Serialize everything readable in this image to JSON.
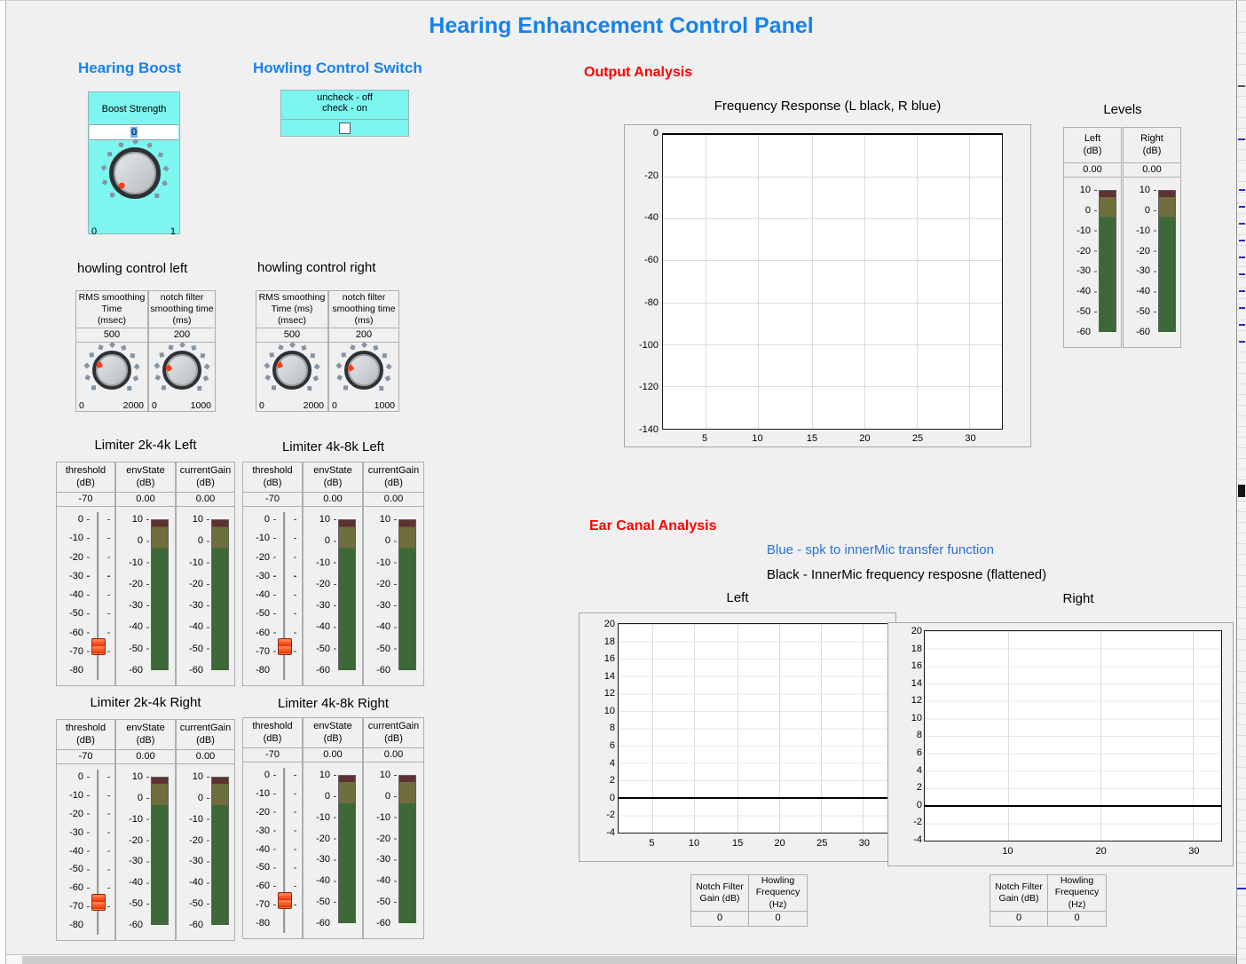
{
  "colors": {
    "title_blue": "#1482f0",
    "section_red": "#ff0000",
    "legend_blue": "#2b70d9",
    "cyan_panel": "#7df6f0",
    "window_bg": "#f0f0f0",
    "meter_maroon": "#5e3134",
    "meter_olive": "#6f6e3d",
    "meter_green": "#3d6837",
    "indicator_orange": "#ff3a12",
    "knob_tick": "#8494a3",
    "grid": "#dcdcdc",
    "grid_light": "#e7e7e7"
  },
  "title": "Hearing Enhancement Control Panel",
  "hearing_boost": {
    "section_label": "Hearing Boost",
    "control_label": "Boost Strength",
    "value": "0",
    "scale_min": "0",
    "scale_max": "1",
    "knob": {
      "value": 0,
      "min": 0,
      "max": 1
    }
  },
  "howling_switch": {
    "section_label": "Howling Control Switch",
    "caption": "uncheck - off\ncheck - on",
    "checked": false
  },
  "howling_left": {
    "section_label": "howling control left",
    "knobs": [
      {
        "header": "RMS smoothing\nTime\n(msec)",
        "value": "500",
        "scale_min": "0",
        "scale_max": "2000",
        "knob": {
          "value": 500,
          "min": 0,
          "max": 2000
        }
      },
      {
        "header": "notch filter\nsmoothing time\n(ms)",
        "value": "200",
        "scale_min": "0",
        "scale_max": "1000",
        "knob": {
          "value": 200,
          "min": 0,
          "max": 1000
        }
      }
    ]
  },
  "howling_right": {
    "section_label": "howling control right",
    "knobs": [
      {
        "header": "RMS smoothing\nTime (ms)\n(msec)",
        "value": "500",
        "scale_min": "0",
        "scale_max": "2000",
        "knob": {
          "value": 500,
          "min": 0,
          "max": 2000
        }
      },
      {
        "header": "notch filter\nsmoothing time\n(ms)",
        "value": "200",
        "scale_min": "0",
        "scale_max": "1000",
        "knob": {
          "value": 200,
          "min": 0,
          "max": 1000
        }
      }
    ]
  },
  "limiter_common": {
    "threshold_header": "threshold\n(dB)",
    "threshold_value": "-70",
    "threshold_ticks": [
      "0",
      "-10",
      "-20",
      "-30",
      "-40",
      "-50",
      "-60",
      "-70",
      "-80"
    ],
    "envstate_header": "envState\n(dB)",
    "envstate_value": "0.00",
    "currentgain_header": "currentGain\n(dB)",
    "currentgain_value": "0.00"
  },
  "meter_ticks": [
    "10",
    "0",
    "-10",
    "-20",
    "-30",
    "-40",
    "-50",
    "-60"
  ],
  "limiters": [
    {
      "title": "Limiter 2k-4k Left"
    },
    {
      "title": "Limiter 4k-8k Left"
    },
    {
      "title": "Limiter 2k-4k Right"
    },
    {
      "title": "Limiter 4k-8k Right"
    }
  ],
  "output_analysis": {
    "section_label": "Output Analysis",
    "chart_title": "Frequency Response (L black, R blue)",
    "y_ticks": [
      "0",
      "-20",
      "-40",
      "-60",
      "-80",
      "-100",
      "-120",
      "-140"
    ],
    "x_ticks": [
      "5",
      "10",
      "15",
      "20",
      "25",
      "30"
    ]
  },
  "levels": {
    "section_label": "Levels",
    "meters": [
      {
        "header": "Left\n(dB)",
        "value": "0.00"
      },
      {
        "header": "Right\n(dB)",
        "value": "0.00"
      }
    ]
  },
  "ear_canal": {
    "section_label": "Ear Canal Analysis",
    "legend_blue": "Blue - spk to innerMic transfer function",
    "legend_black": "Black - InnerMic frequency resposne (flattened)",
    "left": {
      "title": "Left",
      "y_ticks": [
        "20",
        "18",
        "16",
        "14",
        "12",
        "10",
        "8",
        "6",
        "4",
        "2",
        "0",
        "-2",
        "-4"
      ],
      "x_ticks": [
        "5",
        "10",
        "15",
        "20",
        "25",
        "30"
      ]
    },
    "right": {
      "title": "Right",
      "y_ticks": [
        "20",
        "18",
        "16",
        "14",
        "12",
        "10",
        "8",
        "6",
        "4",
        "2",
        "0",
        "-2",
        "-4"
      ],
      "x_ticks": [
        "10",
        "20",
        "30"
      ]
    },
    "tables": [
      {
        "col1_header": "Notch Filter\nGain (dB)",
        "col2_header": "Howling\nFrequency\n(Hz)",
        "col1_value": "0",
        "col2_value": "0"
      },
      {
        "col1_header": "Notch Filter\nGain (dB)",
        "col2_header": "Howling\nFrequency\n(Hz)",
        "col1_value": "0",
        "col2_value": "0"
      }
    ]
  },
  "chart_data": [
    {
      "type": "line",
      "title": "Frequency Response (L black, R blue)",
      "xlabel": "",
      "ylabel": "",
      "xlim": [
        1,
        33
      ],
      "ylim": [
        -140,
        0
      ],
      "x_ticks": [
        5,
        10,
        15,
        20,
        25,
        30
      ],
      "y_ticks": [
        0,
        -20,
        -40,
        -60,
        -80,
        -100,
        -120,
        -140
      ],
      "grid": true,
      "series": [
        {
          "name": "L (black)",
          "constant_y": 0
        },
        {
          "name": "R (blue)",
          "constant_y": 0
        }
      ]
    },
    {
      "type": "line",
      "title": "Left (Ear Canal)",
      "xlim": [
        1,
        33
      ],
      "ylim": [
        -4,
        20
      ],
      "x_ticks": [
        5,
        10,
        15,
        20,
        25,
        30
      ],
      "y_ticks": [
        20,
        18,
        16,
        14,
        12,
        10,
        8,
        6,
        4,
        2,
        0,
        -2,
        -4
      ],
      "grid": true,
      "series": [
        {
          "name": "Black - InnerMic frequency resposne (flattened)",
          "constant_y": 0
        },
        {
          "name": "Blue - spk to innerMic transfer function",
          "constant_y": null
        }
      ]
    },
    {
      "type": "line",
      "title": "Right (Ear Canal)",
      "xlim": [
        1,
        33
      ],
      "ylim": [
        -4,
        20
      ],
      "x_ticks": [
        10,
        20,
        30
      ],
      "y_ticks": [
        20,
        18,
        16,
        14,
        12,
        10,
        8,
        6,
        4,
        2,
        0,
        -2,
        -4
      ],
      "grid": true,
      "series": [
        {
          "name": "Black - InnerMic frequency resposne (flattened)",
          "constant_y": 0
        },
        {
          "name": "Blue - spk to innerMic transfer function",
          "constant_y": null
        }
      ]
    }
  ]
}
